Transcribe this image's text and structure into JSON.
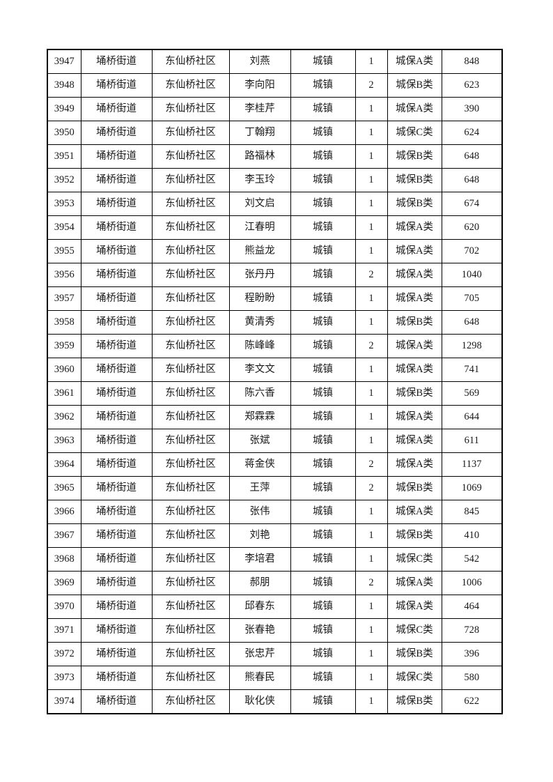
{
  "table": {
    "fields": [
      "seq",
      "street",
      "community",
      "name",
      "residence",
      "count",
      "category",
      "amount"
    ],
    "rows": [
      {
        "seq": "3947",
        "street": "埇桥街道",
        "community": "东仙桥社区",
        "name": "刘燕",
        "residence": "城镇",
        "count": "1",
        "category": "城保A类",
        "amount": "848"
      },
      {
        "seq": "3948",
        "street": "埇桥街道",
        "community": "东仙桥社区",
        "name": "李向阳",
        "residence": "城镇",
        "count": "2",
        "category": "城保B类",
        "amount": "623"
      },
      {
        "seq": "3949",
        "street": "埇桥街道",
        "community": "东仙桥社区",
        "name": "李桂芹",
        "residence": "城镇",
        "count": "1",
        "category": "城保A类",
        "amount": "390"
      },
      {
        "seq": "3950",
        "street": "埇桥街道",
        "community": "东仙桥社区",
        "name": "丁翰翔",
        "residence": "城镇",
        "count": "1",
        "category": "城保C类",
        "amount": "624"
      },
      {
        "seq": "3951",
        "street": "埇桥街道",
        "community": "东仙桥社区",
        "name": "路福林",
        "residence": "城镇",
        "count": "1",
        "category": "城保B类",
        "amount": "648"
      },
      {
        "seq": "3952",
        "street": "埇桥街道",
        "community": "东仙桥社区",
        "name": "李玉玲",
        "residence": "城镇",
        "count": "1",
        "category": "城保B类",
        "amount": "648"
      },
      {
        "seq": "3953",
        "street": "埇桥街道",
        "community": "东仙桥社区",
        "name": "刘文启",
        "residence": "城镇",
        "count": "1",
        "category": "城保B类",
        "amount": "674"
      },
      {
        "seq": "3954",
        "street": "埇桥街道",
        "community": "东仙桥社区",
        "name": "江春明",
        "residence": "城镇",
        "count": "1",
        "category": "城保A类",
        "amount": "620"
      },
      {
        "seq": "3955",
        "street": "埇桥街道",
        "community": "东仙桥社区",
        "name": "熊益龙",
        "residence": "城镇",
        "count": "1",
        "category": "城保A类",
        "amount": "702"
      },
      {
        "seq": "3956",
        "street": "埇桥街道",
        "community": "东仙桥社区",
        "name": "张丹丹",
        "residence": "城镇",
        "count": "2",
        "category": "城保A类",
        "amount": "1040"
      },
      {
        "seq": "3957",
        "street": "埇桥街道",
        "community": "东仙桥社区",
        "name": "程盼盼",
        "residence": "城镇",
        "count": "1",
        "category": "城保A类",
        "amount": "705"
      },
      {
        "seq": "3958",
        "street": "埇桥街道",
        "community": "东仙桥社区",
        "name": "黄清秀",
        "residence": "城镇",
        "count": "1",
        "category": "城保B类",
        "amount": "648"
      },
      {
        "seq": "3959",
        "street": "埇桥街道",
        "community": "东仙桥社区",
        "name": "陈峰峰",
        "residence": "城镇",
        "count": "2",
        "category": "城保A类",
        "amount": "1298"
      },
      {
        "seq": "3960",
        "street": "埇桥街道",
        "community": "东仙桥社区",
        "name": "李文文",
        "residence": "城镇",
        "count": "1",
        "category": "城保A类",
        "amount": "741"
      },
      {
        "seq": "3961",
        "street": "埇桥街道",
        "community": "东仙桥社区",
        "name": "陈六香",
        "residence": "城镇",
        "count": "1",
        "category": "城保B类",
        "amount": "569"
      },
      {
        "seq": "3962",
        "street": "埇桥街道",
        "community": "东仙桥社区",
        "name": "郑霖霖",
        "residence": "城镇",
        "count": "1",
        "category": "城保A类",
        "amount": "644"
      },
      {
        "seq": "3963",
        "street": "埇桥街道",
        "community": "东仙桥社区",
        "name": "张斌",
        "residence": "城镇",
        "count": "1",
        "category": "城保A类",
        "amount": "611"
      },
      {
        "seq": "3964",
        "street": "埇桥街道",
        "community": "东仙桥社区",
        "name": "蒋金侠",
        "residence": "城镇",
        "count": "2",
        "category": "城保A类",
        "amount": "1137"
      },
      {
        "seq": "3965",
        "street": "埇桥街道",
        "community": "东仙桥社区",
        "name": "王萍",
        "residence": "城镇",
        "count": "2",
        "category": "城保B类",
        "amount": "1069"
      },
      {
        "seq": "3966",
        "street": "埇桥街道",
        "community": "东仙桥社区",
        "name": "张伟",
        "residence": "城镇",
        "count": "1",
        "category": "城保A类",
        "amount": "845"
      },
      {
        "seq": "3967",
        "street": "埇桥街道",
        "community": "东仙桥社区",
        "name": "刘艳",
        "residence": "城镇",
        "count": "1",
        "category": "城保B类",
        "amount": "410"
      },
      {
        "seq": "3968",
        "street": "埇桥街道",
        "community": "东仙桥社区",
        "name": "李培君",
        "residence": "城镇",
        "count": "1",
        "category": "城保C类",
        "amount": "542"
      },
      {
        "seq": "3969",
        "street": "埇桥街道",
        "community": "东仙桥社区",
        "name": "郝朋",
        "residence": "城镇",
        "count": "2",
        "category": "城保A类",
        "amount": "1006"
      },
      {
        "seq": "3970",
        "street": "埇桥街道",
        "community": "东仙桥社区",
        "name": "邱春东",
        "residence": "城镇",
        "count": "1",
        "category": "城保A类",
        "amount": "464"
      },
      {
        "seq": "3971",
        "street": "埇桥街道",
        "community": "东仙桥社区",
        "name": "张春艳",
        "residence": "城镇",
        "count": "1",
        "category": "城保C类",
        "amount": "728"
      },
      {
        "seq": "3972",
        "street": "埇桥街道",
        "community": "东仙桥社区",
        "name": "张忠芹",
        "residence": "城镇",
        "count": "1",
        "category": "城保B类",
        "amount": "396"
      },
      {
        "seq": "3973",
        "street": "埇桥街道",
        "community": "东仙桥社区",
        "name": "熊春民",
        "residence": "城镇",
        "count": "1",
        "category": "城保C类",
        "amount": "580"
      },
      {
        "seq": "3974",
        "street": "埇桥街道",
        "community": "东仙桥社区",
        "name": "耿化侠",
        "residence": "城镇",
        "count": "1",
        "category": "城保B类",
        "amount": "622"
      }
    ],
    "colors": {
      "page_background": "#ffffff",
      "border": "#000000",
      "text": "#1a1a1a"
    }
  }
}
